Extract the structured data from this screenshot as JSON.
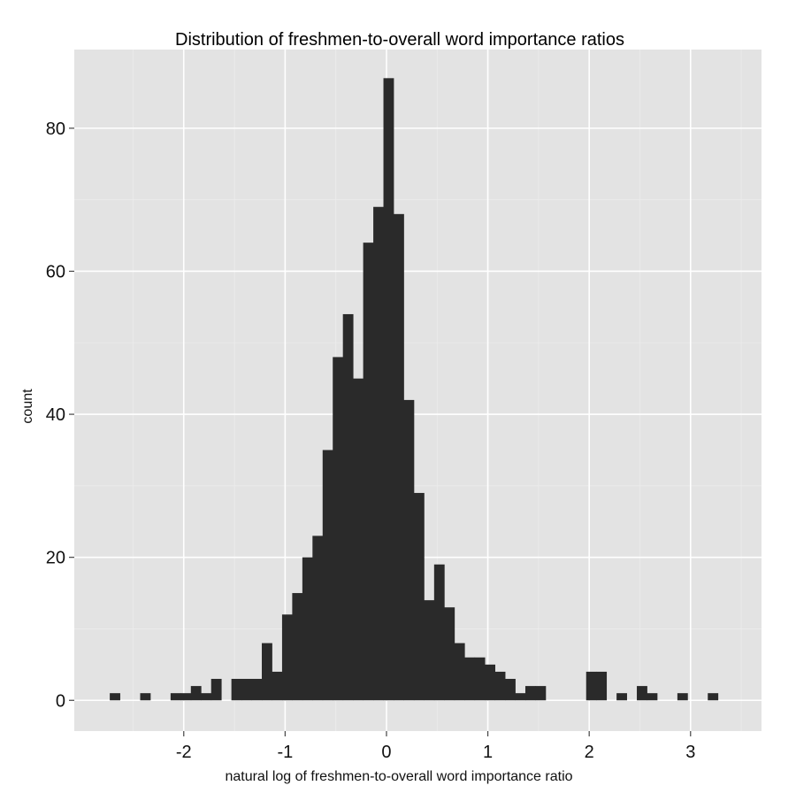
{
  "chart_data": {
    "type": "bar",
    "title": "Distribution of freshmen-to-overall word importance ratios",
    "xlabel": "natural log of freshmen-to-overall word importance ratio",
    "ylabel": "count",
    "xlim": [
      -3.08,
      3.7
    ],
    "ylim": [
      -4.3,
      91
    ],
    "x_ticks": [
      -2,
      -1,
      0,
      1,
      2,
      3
    ],
    "x_tick_labels": [
      "-2",
      "-1",
      "0",
      "1",
      "2",
      "3"
    ],
    "y_ticks": [
      0,
      20,
      40,
      60,
      80
    ],
    "y_tick_labels": [
      "0",
      "20",
      "40",
      "60",
      "80"
    ],
    "grid": true,
    "bar_color": "#2a2a2a",
    "panel_color": "#e3e3e3",
    "grid_color": "#ffffff",
    "bin_width": 0.1,
    "bins": [
      {
        "start": -2.73,
        "count": 1
      },
      {
        "start": -2.63,
        "count": 0
      },
      {
        "start": -2.53,
        "count": 0
      },
      {
        "start": -2.43,
        "count": 1
      },
      {
        "start": -2.33,
        "count": 0
      },
      {
        "start": -2.23,
        "count": 0
      },
      {
        "start": -2.13,
        "count": 1
      },
      {
        "start": -2.03,
        "count": 1
      },
      {
        "start": -1.93,
        "count": 2
      },
      {
        "start": -1.83,
        "count": 1
      },
      {
        "start": -1.73,
        "count": 3
      },
      {
        "start": -1.63,
        "count": 0
      },
      {
        "start": -1.53,
        "count": 3
      },
      {
        "start": -1.43,
        "count": 3
      },
      {
        "start": -1.33,
        "count": 3
      },
      {
        "start": -1.23,
        "count": 8
      },
      {
        "start": -1.13,
        "count": 4
      },
      {
        "start": -1.03,
        "count": 12
      },
      {
        "start": -0.93,
        "count": 15
      },
      {
        "start": -0.83,
        "count": 20
      },
      {
        "start": -0.73,
        "count": 23
      },
      {
        "start": -0.63,
        "count": 35
      },
      {
        "start": -0.53,
        "count": 48
      },
      {
        "start": -0.43,
        "count": 54
      },
      {
        "start": -0.33,
        "count": 45
      },
      {
        "start": -0.23,
        "count": 64
      },
      {
        "start": -0.13,
        "count": 69
      },
      {
        "start": -0.03,
        "count": 87
      },
      {
        "start": 0.07,
        "count": 68
      },
      {
        "start": 0.17,
        "count": 42
      },
      {
        "start": 0.27,
        "count": 29
      },
      {
        "start": 0.37,
        "count": 14
      },
      {
        "start": 0.47,
        "count": 19
      },
      {
        "start": 0.57,
        "count": 13
      },
      {
        "start": 0.67,
        "count": 8
      },
      {
        "start": 0.77,
        "count": 6
      },
      {
        "start": 0.87,
        "count": 6
      },
      {
        "start": 0.97,
        "count": 5
      },
      {
        "start": 1.07,
        "count": 4
      },
      {
        "start": 1.17,
        "count": 3
      },
      {
        "start": 1.27,
        "count": 1
      },
      {
        "start": 1.37,
        "count": 2
      },
      {
        "start": 1.47,
        "count": 2
      },
      {
        "start": 1.57,
        "count": 0
      },
      {
        "start": 1.67,
        "count": 0
      },
      {
        "start": 1.77,
        "count": 0
      },
      {
        "start": 1.87,
        "count": 0
      },
      {
        "start": 1.97,
        "count": 4
      },
      {
        "start": 2.07,
        "count": 4
      },
      {
        "start": 2.17,
        "count": 0
      },
      {
        "start": 2.27,
        "count": 1
      },
      {
        "start": 2.37,
        "count": 0
      },
      {
        "start": 2.47,
        "count": 2
      },
      {
        "start": 2.57,
        "count": 1
      },
      {
        "start": 2.67,
        "count": 0
      },
      {
        "start": 2.77,
        "count": 0
      },
      {
        "start": 2.87,
        "count": 1
      },
      {
        "start": 2.97,
        "count": 0
      },
      {
        "start": 3.07,
        "count": 0
      },
      {
        "start": 3.17,
        "count": 1
      }
    ]
  }
}
